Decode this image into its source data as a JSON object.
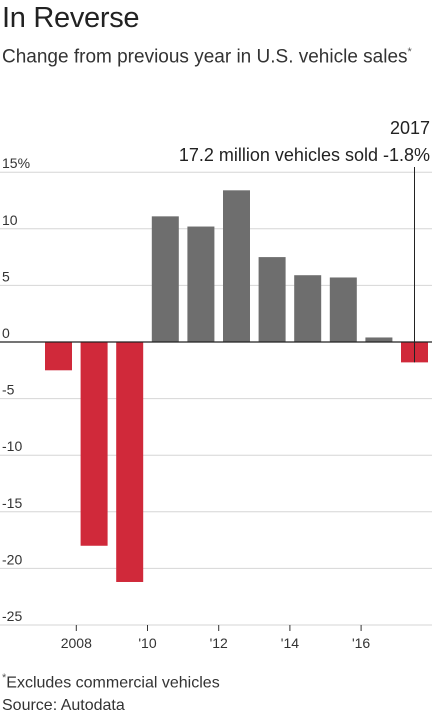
{
  "header": {
    "title": "In Reverse",
    "subtitle": "Change from previous year in U.S. vehicle sales",
    "subtitle_mark": "*"
  },
  "footer": {
    "note_mark": "*",
    "note": "Excludes commercial vehicles",
    "source": "Source: Autodata"
  },
  "colors": {
    "positive": "#6e6e6e",
    "negative": "#d0293a",
    "gridline": "#d6d6d6",
    "zeroline": "#222222"
  },
  "chart_data": {
    "type": "bar",
    "title": "In Reverse",
    "subtitle": "Change from previous year in U.S. vehicle sales*",
    "categories": [
      "2007",
      "2008",
      "2009",
      "2010",
      "2011",
      "2012",
      "2013",
      "2014",
      "2015",
      "2016",
      "2017"
    ],
    "values": [
      -2.5,
      -18.0,
      -21.2,
      11.1,
      10.2,
      13.4,
      7.5,
      5.9,
      5.7,
      0.4,
      -1.8
    ],
    "y_ticks": [
      15,
      10,
      5,
      0,
      -5,
      -10,
      -15,
      -20,
      -25
    ],
    "y_tick_labels": [
      "15%",
      "10",
      "5",
      "0",
      "-5",
      "-10",
      "-15",
      "-20",
      "-25"
    ],
    "x_tick_labels": [
      {
        "category": "2008",
        "label": "2008"
      },
      {
        "category": "2010",
        "label": "'10"
      },
      {
        "category": "2012",
        "label": "'12"
      },
      {
        "category": "2014",
        "label": "'14"
      },
      {
        "category": "2016",
        "label": "'16"
      }
    ],
    "ylim": [
      -25,
      15
    ],
    "grid": true,
    "annotation": {
      "category": "2017",
      "year_label": "2017",
      "text": "17.2 million vehicles sold -1.8%"
    }
  }
}
